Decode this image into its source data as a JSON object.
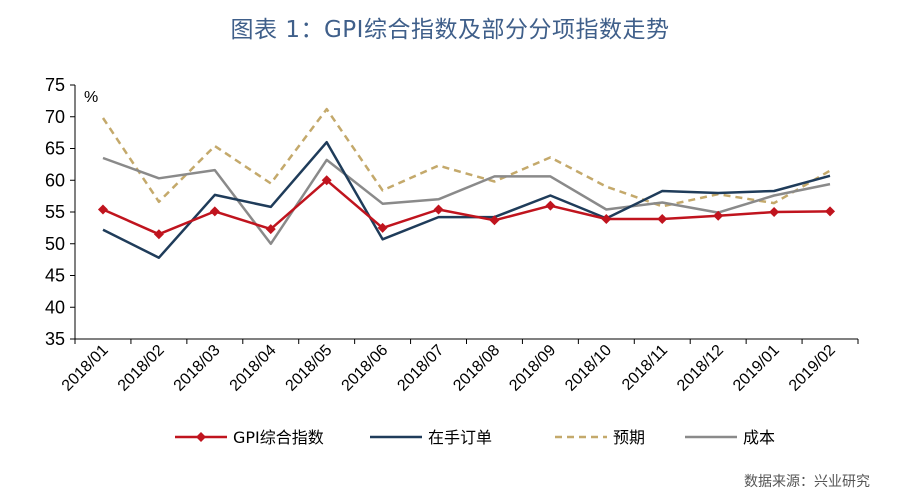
{
  "title": "图表 1：GPI综合指数及部分分项指数走势",
  "source": "数据来源：兴业研究",
  "chart_data": {
    "type": "line",
    "title": "图表 1：GPI综合指数及部分分项指数走势",
    "ylabel": "%",
    "xlabel": "",
    "ylim": [
      35,
      75
    ],
    "yticks": [
      35,
      40,
      45,
      50,
      55,
      60,
      65,
      70,
      75
    ],
    "categories": [
      "2018/01",
      "2018/02",
      "2018/03",
      "2018/04",
      "2018/05",
      "2018/06",
      "2018/07",
      "2018/08",
      "2018/09",
      "2018/10",
      "2018/11",
      "2018/12",
      "2019/01",
      "2019/02"
    ],
    "legend_position": "bottom",
    "grid": false,
    "series": [
      {
        "name": "GPI综合指数",
        "color": "#c0141e",
        "style": "solid-diamond",
        "values": [
          55.4,
          51.5,
          55.1,
          52.3,
          60.0,
          52.5,
          55.4,
          53.7,
          56.0,
          53.9,
          53.9,
          54.4,
          55.0,
          55.1
        ]
      },
      {
        "name": "在手订单",
        "color": "#1f3c5a",
        "style": "solid",
        "values": [
          52.2,
          47.8,
          57.7,
          55.8,
          66.0,
          50.7,
          54.2,
          54.2,
          57.6,
          54.0,
          58.3,
          58.0,
          58.3,
          60.7
        ]
      },
      {
        "name": "预期",
        "color": "#c4a96b",
        "style": "dashed",
        "values": [
          69.8,
          56.6,
          65.4,
          59.5,
          71.2,
          58.4,
          62.3,
          59.8,
          63.6,
          59.0,
          55.9,
          57.8,
          56.4,
          61.5
        ]
      },
      {
        "name": "成本",
        "color": "#8a8a8a",
        "style": "solid",
        "values": [
          63.5,
          60.3,
          61.6,
          50.0,
          63.2,
          56.3,
          57.0,
          60.6,
          60.6,
          55.4,
          56.5,
          54.9,
          57.6,
          59.4
        ]
      }
    ]
  }
}
